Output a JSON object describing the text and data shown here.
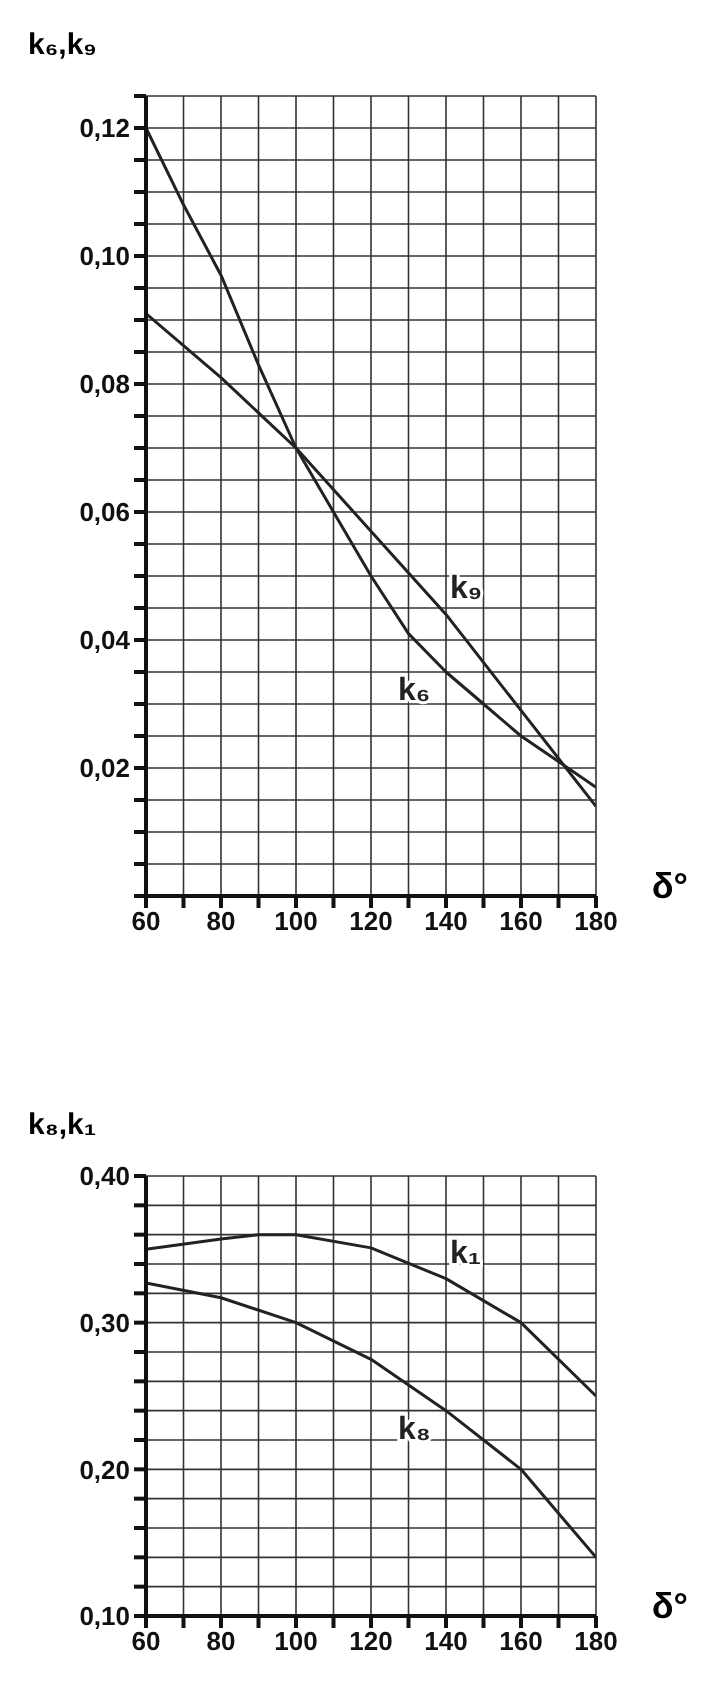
{
  "chart_data": [
    {
      "type": "line",
      "ylabel": "k₆,k₉",
      "xlabel": "δ°",
      "grid": true,
      "legend": false,
      "marker": "none",
      "line_style": "solid",
      "xlim": [
        60,
        180
      ],
      "xticks": [
        60,
        {
          "value": 70,
          "label": null
        },
        80,
        {
          "value": 90,
          "label": null
        },
        100,
        {
          "value": 110,
          "label": null
        },
        120,
        {
          "value": 130,
          "label": null
        },
        140,
        {
          "value": 150,
          "label": null
        },
        160,
        {
          "value": 170,
          "label": null
        },
        180
      ],
      "ylim": [
        0,
        0.125
      ],
      "yticks": [
        {
          "value": 0,
          "label": null
        },
        {
          "value": 0.005,
          "label": null
        },
        {
          "value": 0.01,
          "label": null
        },
        {
          "value": 0.015,
          "label": null
        },
        {
          "value": 0.02,
          "label": "0,02"
        },
        {
          "value": 0.025,
          "label": null
        },
        {
          "value": 0.03,
          "label": null
        },
        {
          "value": 0.035,
          "label": null
        },
        {
          "value": 0.04,
          "label": "0,04"
        },
        {
          "value": 0.045,
          "label": null
        },
        {
          "value": 0.05,
          "label": null
        },
        {
          "value": 0.055,
          "label": null
        },
        {
          "value": 0.06,
          "label": "0,06"
        },
        {
          "value": 0.065,
          "label": null
        },
        {
          "value": 0.07,
          "label": null
        },
        {
          "value": 0.075,
          "label": null
        },
        {
          "value": 0.08,
          "label": "0,08"
        },
        {
          "value": 0.085,
          "label": null
        },
        {
          "value": 0.09,
          "label": null
        },
        {
          "value": 0.095,
          "label": null
        },
        {
          "value": 0.1,
          "label": "0,10"
        },
        {
          "value": 0.105,
          "label": null
        },
        {
          "value": 0.11,
          "label": null
        },
        {
          "value": 0.115,
          "label": null
        },
        {
          "value": 0.12,
          "label": "0,12"
        },
        {
          "value": 0.125,
          "label": null
        }
      ],
      "series": [
        {
          "name": "k₉",
          "color": "#222222",
          "x": [
            60,
            80,
            100,
            120,
            140,
            160,
            180
          ],
          "values": [
            0.091,
            0.081,
            0.07,
            0.057,
            0.044,
            0.029,
            0.014
          ]
        },
        {
          "name": "k₆",
          "color": "#222222",
          "x": [
            60,
            70,
            80,
            90,
            100,
            110,
            120,
            130,
            140,
            150,
            160,
            170,
            180
          ],
          "values": [
            0.12,
            0.108,
            0.097,
            0.083,
            0.07,
            0.06,
            0.05,
            0.041,
            0.035,
            0.03,
            0.025,
            0.021,
            0.017
          ]
        }
      ]
    },
    {
      "type": "line",
      "ylabel": "k₈,k₁",
      "xlabel": "δ°",
      "grid": true,
      "legend": false,
      "marker": "none",
      "line_style": "solid",
      "xlim": [
        60,
        180
      ],
      "xticks": [
        60,
        {
          "value": 70,
          "label": null
        },
        80,
        {
          "value": 90,
          "label": null
        },
        100,
        {
          "value": 110,
          "label": null
        },
        120,
        {
          "value": 130,
          "label": null
        },
        140,
        {
          "value": 150,
          "label": null
        },
        160,
        {
          "value": 170,
          "label": null
        },
        180
      ],
      "ylim": [
        0.1,
        0.4
      ],
      "yticks": [
        {
          "value": 0.1,
          "label": "0,10"
        },
        {
          "value": 0.12,
          "label": null
        },
        {
          "value": 0.14,
          "label": null
        },
        {
          "value": 0.16,
          "label": null
        },
        {
          "value": 0.18,
          "label": null
        },
        {
          "value": 0.2,
          "label": "0,20"
        },
        {
          "value": 0.22,
          "label": null
        },
        {
          "value": 0.24,
          "label": null
        },
        {
          "value": 0.26,
          "label": null
        },
        {
          "value": 0.28,
          "label": null
        },
        {
          "value": 0.3,
          "label": "0,30"
        },
        {
          "value": 0.32,
          "label": null
        },
        {
          "value": 0.34,
          "label": null
        },
        {
          "value": 0.36,
          "label": null
        },
        {
          "value": 0.38,
          "label": null
        },
        {
          "value": 0.4,
          "label": "0,40"
        }
      ],
      "series": [
        {
          "name": "k₁",
          "color": "#222222",
          "x": [
            60,
            80,
            90,
            100,
            120,
            140,
            160,
            180
          ],
          "values": [
            0.35,
            0.357,
            0.36,
            0.36,
            0.351,
            0.33,
            0.3,
            0.25
          ]
        },
        {
          "name": "k₈",
          "color": "#222222",
          "x": [
            60,
            80,
            100,
            120,
            140,
            160,
            180
          ],
          "values": [
            0.327,
            0.317,
            0.3,
            0.275,
            0.24,
            0.2,
            0.14
          ]
        }
      ]
    }
  ]
}
